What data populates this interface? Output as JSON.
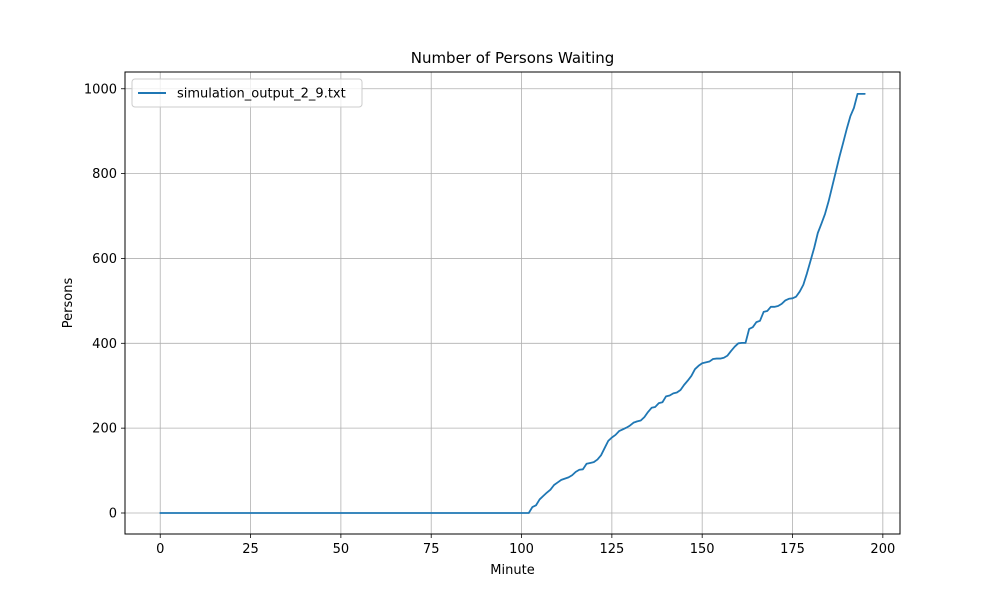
{
  "chart_data": {
    "type": "line",
    "title": "Number of Persons Waiting",
    "xlabel": "Minute",
    "ylabel": "Persons",
    "xlim": [
      -9.75,
      204.75
    ],
    "ylim": [
      -49.5,
      1039.5
    ],
    "xticks": [
      0,
      25,
      50,
      75,
      100,
      125,
      150,
      175,
      200
    ],
    "yticks": [
      0,
      200,
      400,
      600,
      800,
      1000
    ],
    "grid": true,
    "legend_position": "upper-left",
    "series": [
      {
        "name": "simulation_output_2_9.txt",
        "color": "#1f77b4",
        "x": [
          0,
          50,
          102,
          103,
          104,
          105,
          106,
          107,
          108,
          109,
          110,
          111,
          112,
          113,
          114,
          115,
          116,
          117,
          118,
          119,
          120,
          121,
          122,
          123,
          124,
          125,
          126,
          127,
          128,
          129,
          130,
          131,
          132,
          133,
          134,
          135,
          136,
          137,
          138,
          139,
          140,
          141,
          142,
          143,
          144,
          145,
          146,
          147,
          148,
          149,
          150,
          151,
          152,
          153,
          154,
          155,
          156,
          157,
          158,
          159,
          160,
          161,
          162,
          163,
          164,
          165,
          166,
          167,
          168,
          169,
          170,
          171,
          172,
          173,
          174,
          175,
          176,
          177,
          178,
          179,
          180,
          181,
          182,
          183,
          184,
          185,
          186,
          187,
          188,
          189,
          190,
          191,
          192,
          193,
          194,
          195
        ],
        "y": [
          0,
          0,
          0,
          14,
          18,
          32,
          40,
          48,
          55,
          66,
          72,
          78,
          81,
          84,
          89,
          97,
          102,
          103,
          116,
          118,
          120,
          126,
          136,
          153,
          170,
          178,
          184,
          193,
          197,
          201,
          206,
          213,
          216,
          218,
          226,
          238,
          248,
          250,
          259,
          261,
          275,
          277,
          282,
          284,
          290,
          302,
          312,
          323,
          339,
          347,
          353,
          355,
          357,
          363,
          364,
          364,
          366,
          371,
          382,
          392,
          400,
          401,
          401,
          434,
          438,
          450,
          453,
          474,
          476,
          486,
          486,
          488,
          493,
          501,
          505,
          506,
          510,
          522,
          538,
          565,
          595,
          625,
          660,
          682,
          705,
          735,
          770,
          805,
          840,
          872,
          905,
          935,
          955,
          988,
          988,
          988
        ]
      }
    ]
  }
}
